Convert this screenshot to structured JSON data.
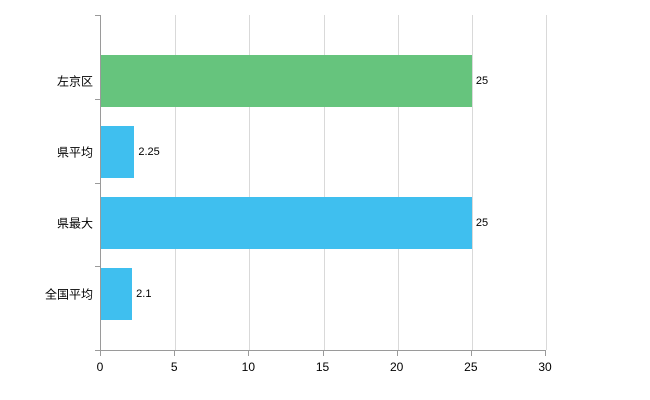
{
  "chart_data": {
    "type": "bar",
    "orientation": "horizontal",
    "title": "",
    "xlabel": "",
    "ylabel": "",
    "categories": [
      "左京区",
      "県平均",
      "県最大",
      "全国平均"
    ],
    "values": [
      25,
      2.25,
      25,
      2.1
    ],
    "value_labels": [
      "25",
      "2.25",
      "25",
      "2.1"
    ],
    "bar_colors": [
      "#66c47d",
      "#3fbfef",
      "#3fbfef",
      "#3fbfef"
    ],
    "xlim": [
      0,
      30
    ],
    "x_ticks": [
      0,
      5,
      10,
      15,
      20,
      25,
      30
    ],
    "grid": true,
    "legend": false
  },
  "colors": {
    "bar_green": "#66c47d",
    "bar_blue": "#3fbfef",
    "gridline": "#d9d9d9",
    "axis": "#9a9a9a",
    "text": "#000000",
    "background": "#ffffff"
  }
}
